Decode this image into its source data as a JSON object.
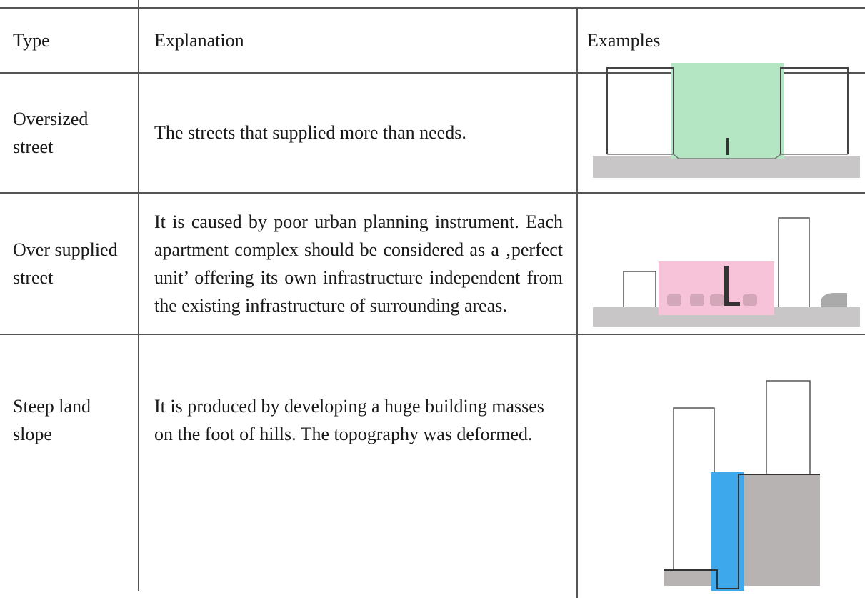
{
  "table": {
    "header": [
      "Type",
      "Explanation",
      "Examples"
    ],
    "rows": [
      [
        "Oversized street",
        "The streets that supplied more than needs."
      ],
      [
        "Over supplied street",
        "It is caused by poor urban planning instrument. Each apartment complex should be considered as a ‚perfect unit’ offering its own infrastructure independent from the existing infrastructure of surrounding areas."
      ],
      [
        "Steep land slope",
        "It is produced by developing a huge building masses on the foot of hills. The topography was deformed."
      ]
    ]
  }
}
